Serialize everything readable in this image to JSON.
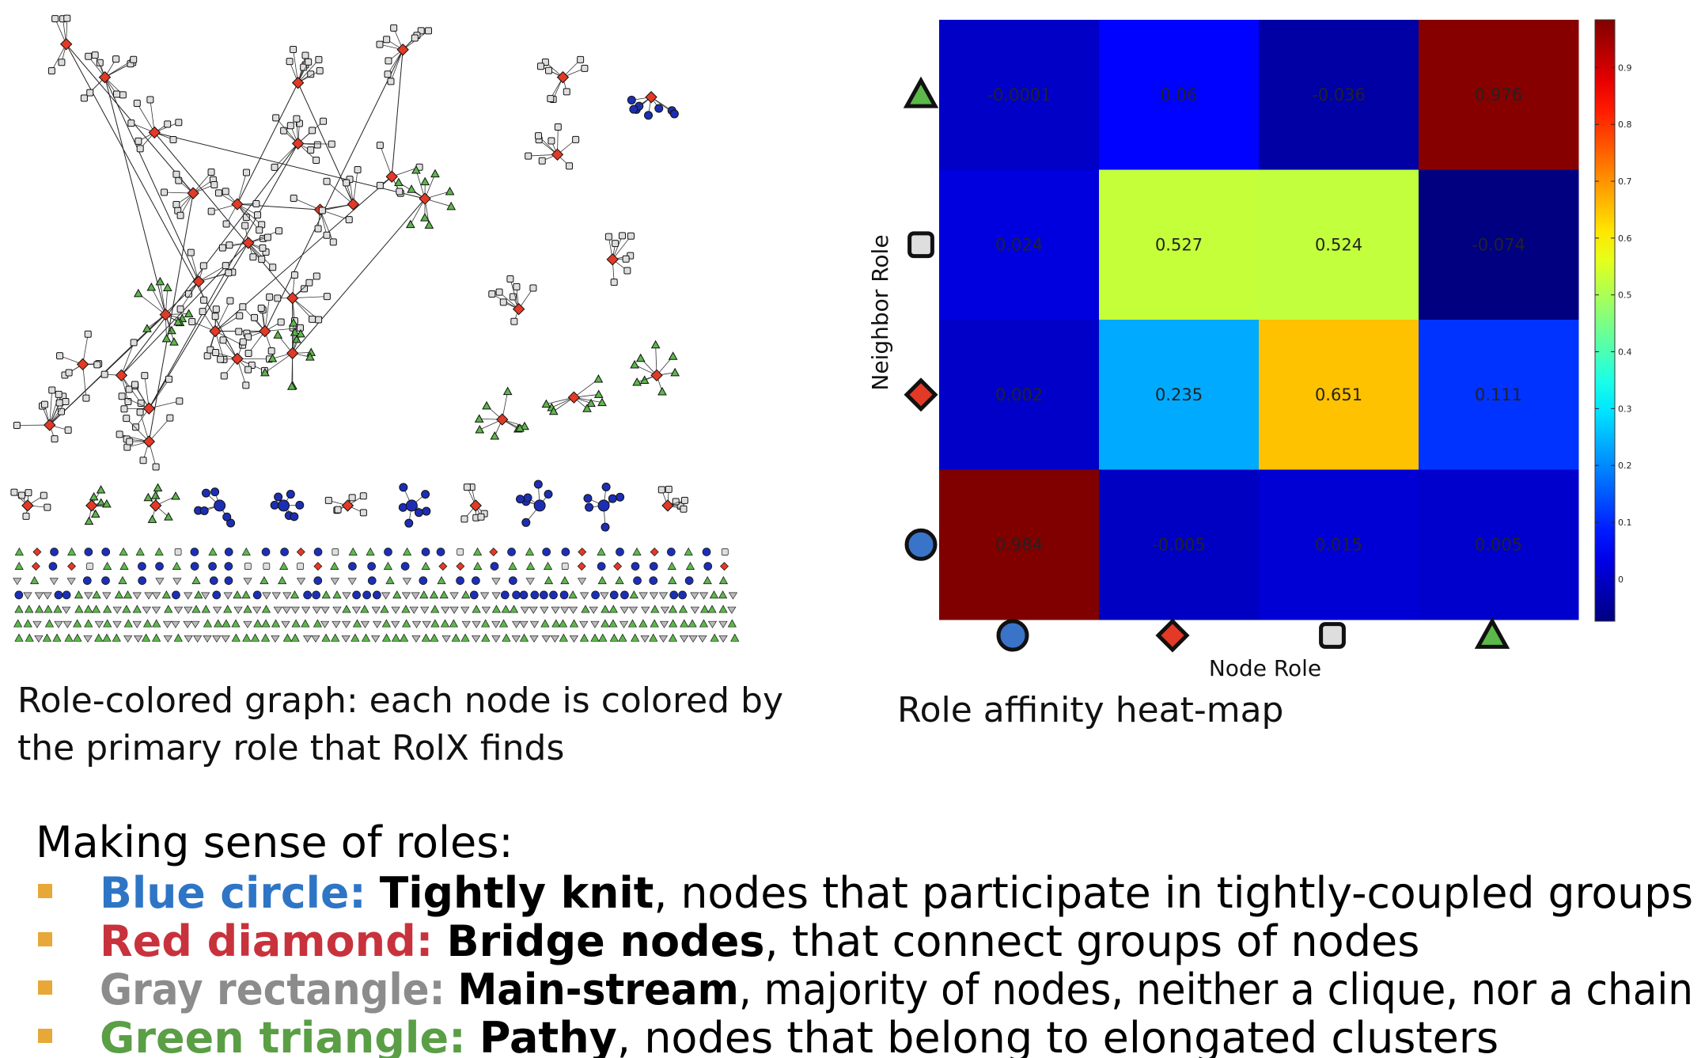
{
  "graph": {
    "caption": [
      "Role-colored graph: each node is colored by",
      "the primary role that RolX finds"
    ]
  },
  "chart_data": {
    "type": "heatmap",
    "title": "Role affinity heat-map",
    "x_label": "Node Role",
    "y_label": "Neighbor Role",
    "values": [
      [
        -0.0001,
        0.06,
        -0.036,
        0.976
      ],
      [
        0.024,
        0.527,
        0.524,
        -0.074
      ],
      [
        0.002,
        0.235,
        0.651,
        0.111
      ],
      [
        0.984,
        -0.005,
        0.015,
        0.005
      ]
    ],
    "colormap": "jet",
    "clim": [
      -0.074,
      0.984
    ],
    "cticks": [
      0,
      0.1,
      0.2,
      0.3,
      0.4,
      0.5,
      0.6,
      0.7,
      0.8,
      0.9
    ]
  },
  "notes": {
    "heading": "Making sense of roles:",
    "bullet_color": "#e8a838",
    "items": [
      {
        "label": "Blue circle:",
        "color": "#2e75c6",
        "term": "Tightly knit",
        "text": ", nodes that participate in tightly-coupled groups"
      },
      {
        "label": "Red diamond:",
        "color": "#c8323c",
        "term": "Bridge nodes",
        "text": ", that connect groups of nodes"
      },
      {
        "label": "Gray rectangle:",
        "color": "#8c8c8c",
        "term": "Main-stream",
        "text": ", majority of nodes, neither a clique, nor a chain"
      },
      {
        "label": "Green triangle:",
        "color": "#5a9e45",
        "term": "Pathy",
        "text": ", nodes that belong to elongated clusters"
      }
    ]
  }
}
